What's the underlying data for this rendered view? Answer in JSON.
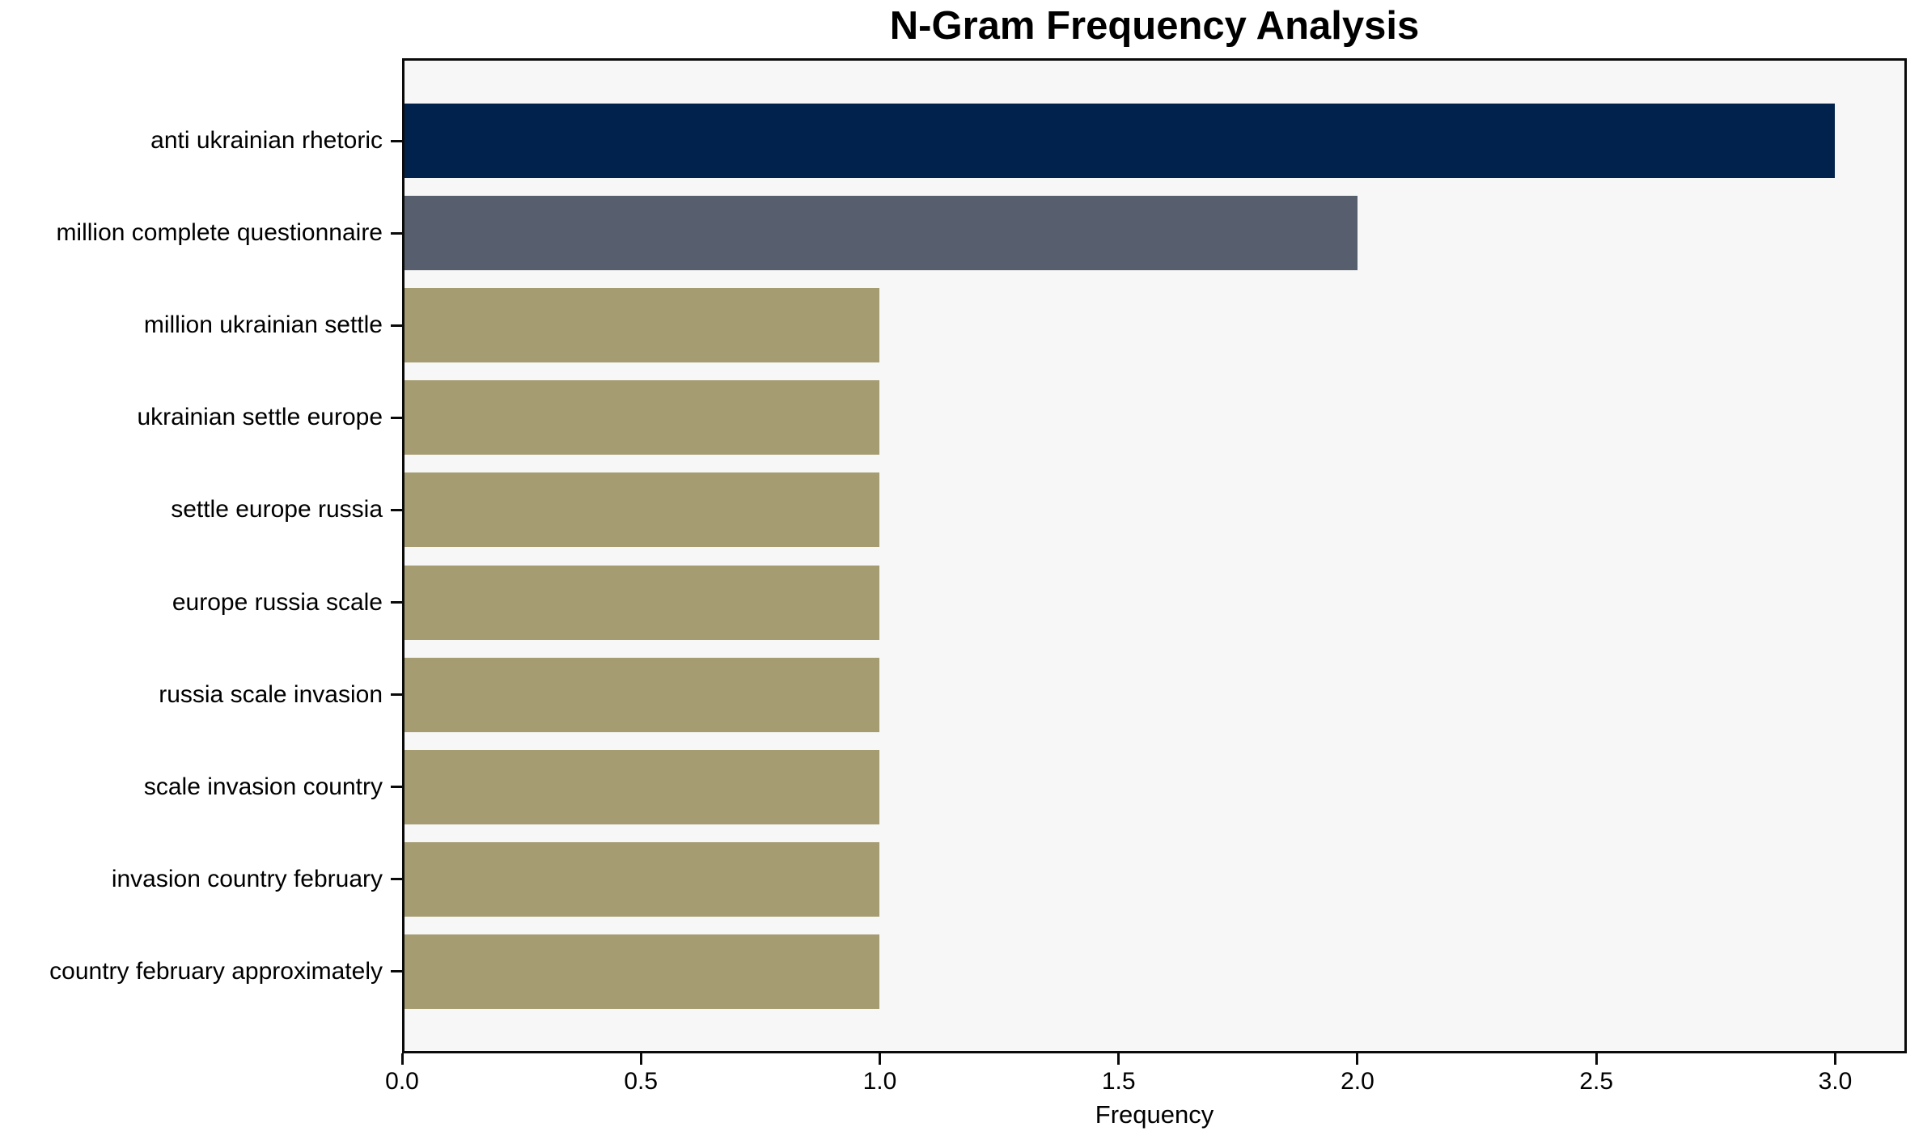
{
  "chart_data": {
    "type": "bar",
    "orientation": "horizontal",
    "title": "N-Gram Frequency Analysis",
    "xlabel": "Frequency",
    "ylabel": "",
    "categories": [
      "anti ukrainian rhetoric",
      "million complete questionnaire",
      "million ukrainian settle",
      "ukrainian settle europe",
      "settle europe russia",
      "europe russia scale",
      "russia scale invasion",
      "scale invasion country",
      "invasion country february",
      "country february approximately"
    ],
    "values": [
      3,
      2,
      1,
      1,
      1,
      1,
      1,
      1,
      1,
      1
    ],
    "bar_colors": [
      "#01224d",
      "#575e6d",
      "#a59c71",
      "#a59c71",
      "#a59c71",
      "#a59c71",
      "#a59c71",
      "#a59c71",
      "#a59c71",
      "#a59c71"
    ],
    "xticks": [
      0.0,
      0.5,
      1.0,
      1.5,
      2.0,
      2.5,
      3.0
    ],
    "xtick_labels": [
      "0.0",
      "0.5",
      "1.0",
      "1.5",
      "2.0",
      "2.5",
      "3.0"
    ],
    "xlim": [
      0,
      3.15
    ],
    "grid": false,
    "legend_position": "none",
    "colors": {
      "top_bar": "#01224d",
      "second_bar": "#575e6d",
      "default_bar": "#a59c71",
      "plot_background": "#f7f7f7",
      "figure_background": "#ffffff",
      "spine": "#0a0a0a",
      "text": "#000000"
    }
  }
}
